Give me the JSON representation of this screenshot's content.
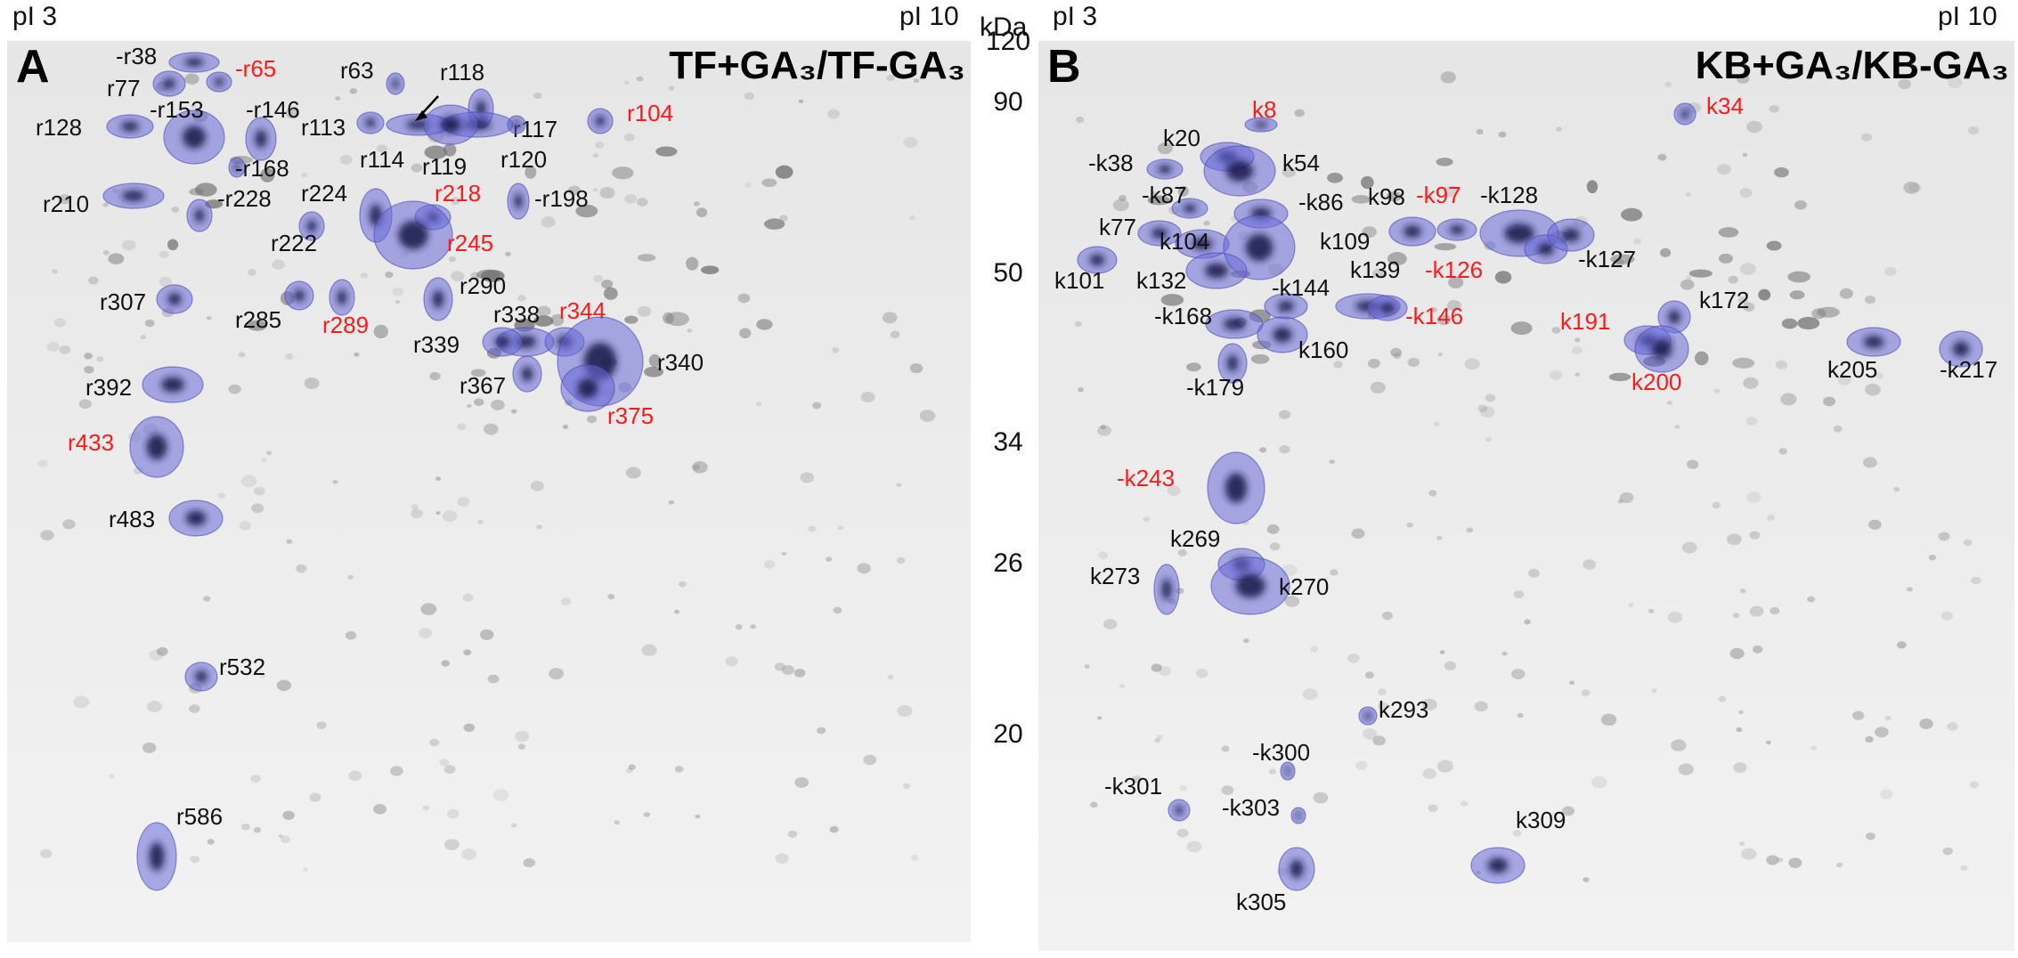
{
  "figure": {
    "top_edge_labels": {
      "left_panel_left": "pI 3",
      "left_panel_right": "pI 10",
      "right_panel_left": "pI 3",
      "right_panel_right": "pI 10",
      "unit": "kDa"
    },
    "molecular_weight_markers": [
      "120",
      "90",
      "50",
      "34",
      "26",
      "20"
    ],
    "colors": {
      "spot_overlay": "#6a6ad8",
      "label_black": "#111111",
      "label_red": "#ff1a1a",
      "gel_background": "#eeeeee"
    },
    "panels": [
      {
        "letter": "A",
        "title": "TF+GA₃/TF-GA₃",
        "spots": [
          {
            "id": "-r38",
            "color": "black"
          },
          {
            "id": "r77",
            "color": "black"
          },
          {
            "id": "-r65",
            "color": "red"
          },
          {
            "id": "r63",
            "color": "black"
          },
          {
            "id": "r118",
            "color": "black"
          },
          {
            "id": "r128",
            "color": "black"
          },
          {
            "id": "-r153",
            "color": "black"
          },
          {
            "id": "-r146",
            "color": "black"
          },
          {
            "id": "r113",
            "color": "black"
          },
          {
            "id": "r117",
            "color": "black"
          },
          {
            "id": "r104",
            "color": "red"
          },
          {
            "id": "-r168",
            "color": "black"
          },
          {
            "id": "r114",
            "color": "black"
          },
          {
            "id": "r119",
            "color": "black"
          },
          {
            "id": "r120",
            "color": "black"
          },
          {
            "id": "r210",
            "color": "black"
          },
          {
            "id": "-r228",
            "color": "black"
          },
          {
            "id": "r224",
            "color": "black"
          },
          {
            "id": "r218",
            "color": "red"
          },
          {
            "id": "-r198",
            "color": "black"
          },
          {
            "id": "r222",
            "color": "black"
          },
          {
            "id": "r245",
            "color": "red"
          },
          {
            "id": "r290",
            "color": "black"
          },
          {
            "id": "r307",
            "color": "black"
          },
          {
            "id": "r285",
            "color": "black"
          },
          {
            "id": "r289",
            "color": "red"
          },
          {
            "id": "r338",
            "color": "black"
          },
          {
            "id": "r344",
            "color": "red"
          },
          {
            "id": "r339",
            "color": "black"
          },
          {
            "id": "r340",
            "color": "black"
          },
          {
            "id": "r392",
            "color": "black"
          },
          {
            "id": "r367",
            "color": "black"
          },
          {
            "id": "r375",
            "color": "red"
          },
          {
            "id": "r433",
            "color": "red"
          },
          {
            "id": "r483",
            "color": "black"
          },
          {
            "id": "r532",
            "color": "black"
          },
          {
            "id": "r586",
            "color": "black"
          }
        ]
      },
      {
        "letter": "B",
        "title": "KB+GA₃/KB-GA₃",
        "spots": [
          {
            "id": "k8",
            "color": "red"
          },
          {
            "id": "k34",
            "color": "red"
          },
          {
            "id": "k20",
            "color": "black"
          },
          {
            "id": "-k38",
            "color": "black"
          },
          {
            "id": "k54",
            "color": "black"
          },
          {
            "id": "-k87",
            "color": "black"
          },
          {
            "id": "-k86",
            "color": "black"
          },
          {
            "id": "k98",
            "color": "black"
          },
          {
            "id": "-k97",
            "color": "red"
          },
          {
            "id": "-k128",
            "color": "black"
          },
          {
            "id": "k77",
            "color": "black"
          },
          {
            "id": "k104",
            "color": "black"
          },
          {
            "id": "k109",
            "color": "black"
          },
          {
            "id": "k101",
            "color": "black"
          },
          {
            "id": "k132",
            "color": "black"
          },
          {
            "id": "k139",
            "color": "black"
          },
          {
            "id": "-k126",
            "color": "red"
          },
          {
            "id": "-k127",
            "color": "black"
          },
          {
            "id": "-k144",
            "color": "black"
          },
          {
            "id": "-k168",
            "color": "black"
          },
          {
            "id": "-k146",
            "color": "red"
          },
          {
            "id": "k172",
            "color": "black"
          },
          {
            "id": "k191",
            "color": "red"
          },
          {
            "id": "k160",
            "color": "black"
          },
          {
            "id": "k205",
            "color": "black"
          },
          {
            "id": "-k217",
            "color": "black"
          },
          {
            "id": "k200",
            "color": "red"
          },
          {
            "id": "-k179",
            "color": "black"
          },
          {
            "id": "-k243",
            "color": "red"
          },
          {
            "id": "k269",
            "color": "black"
          },
          {
            "id": "k273",
            "color": "black"
          },
          {
            "id": "k270",
            "color": "black"
          },
          {
            "id": "k293",
            "color": "black"
          },
          {
            "id": "-k300",
            "color": "black"
          },
          {
            "id": "-k301",
            "color": "black"
          },
          {
            "id": "-k303",
            "color": "black"
          },
          {
            "id": "k309",
            "color": "black"
          },
          {
            "id": "k305",
            "color": "black"
          }
        ]
      }
    ]
  }
}
